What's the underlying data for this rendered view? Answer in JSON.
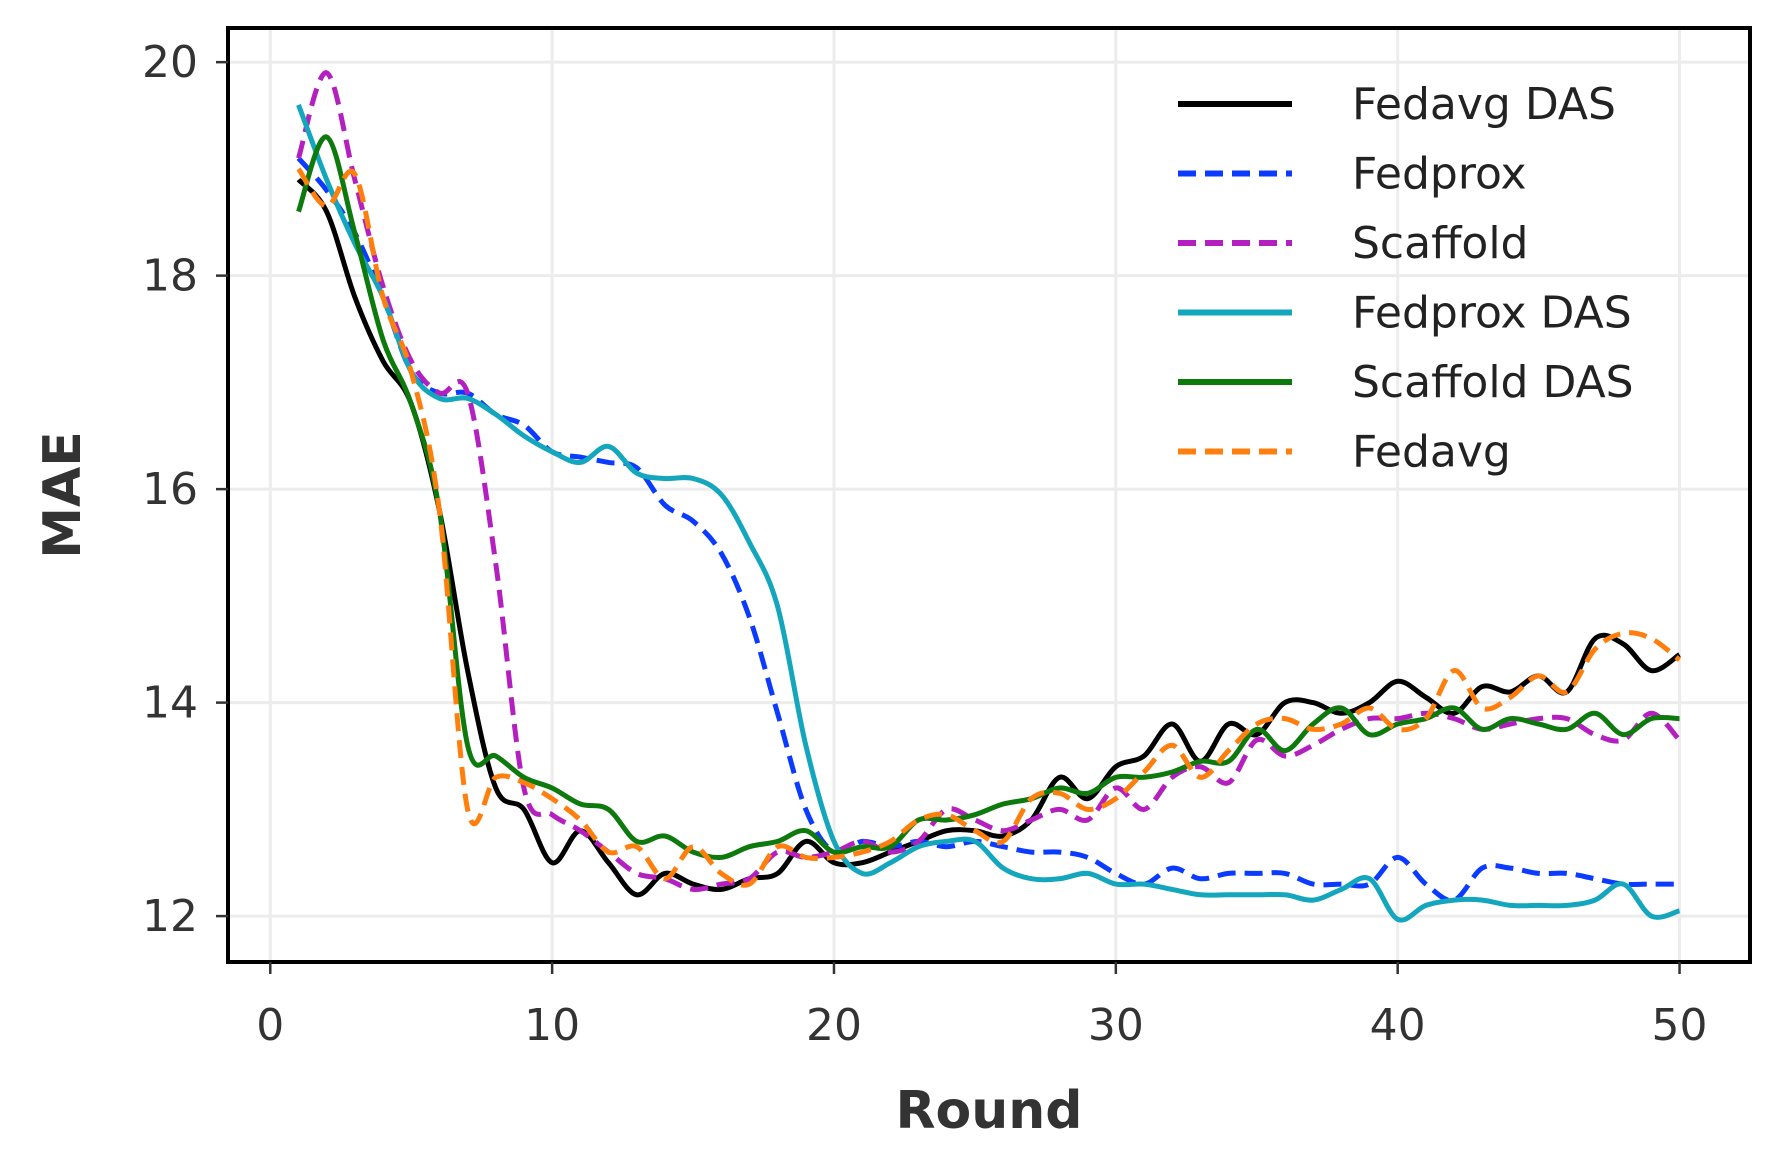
{
  "chart_data": {
    "type": "line",
    "xlabel": "Round",
    "ylabel": "MAE",
    "xlim": [
      -1.5,
      52.5
    ],
    "ylim": [
      11.57,
      20.32
    ],
    "xticks": [
      0,
      10,
      20,
      30,
      40,
      50
    ],
    "yticks": [
      12,
      14,
      16,
      18,
      20
    ],
    "grid": true,
    "legend_position": "top-right",
    "series": [
      {
        "name": "Fedavg DAS",
        "color": "#000000",
        "dash": "solid",
        "x": [
          1,
          2,
          3,
          4,
          5,
          6,
          7,
          8,
          9,
          10,
          11,
          12,
          13,
          14,
          15,
          16,
          17,
          18,
          19,
          20,
          21,
          22,
          23,
          24,
          25,
          26,
          27,
          28,
          29,
          30,
          31,
          32,
          33,
          34,
          35,
          36,
          37,
          38,
          39,
          40,
          41,
          42,
          43,
          44,
          45,
          46,
          47,
          48,
          49,
          50
        ],
        "y": [
          18.9,
          18.6,
          17.8,
          17.2,
          16.8,
          15.8,
          14.3,
          13.2,
          13.0,
          12.5,
          12.8,
          12.5,
          12.2,
          12.4,
          12.3,
          12.25,
          12.35,
          12.4,
          12.7,
          12.5,
          12.5,
          12.6,
          12.7,
          12.8,
          12.8,
          12.75,
          12.9,
          13.3,
          13.1,
          13.4,
          13.5,
          13.8,
          13.45,
          13.8,
          13.7,
          14.0,
          14.0,
          13.9,
          14.0,
          14.2,
          14.05,
          13.9,
          14.15,
          14.1,
          14.25,
          14.1,
          14.6,
          14.55,
          14.3,
          14.45
        ]
      },
      {
        "name": "Fedprox",
        "color": "#0b3bff",
        "dash": "dashed",
        "x": [
          1,
          2,
          3,
          4,
          5,
          6,
          7,
          8,
          9,
          10,
          11,
          12,
          13,
          14,
          15,
          16,
          17,
          18,
          19,
          20,
          21,
          22,
          23,
          24,
          25,
          26,
          27,
          28,
          29,
          30,
          31,
          32,
          33,
          34,
          35,
          36,
          37,
          38,
          39,
          40,
          41,
          42,
          43,
          44,
          45,
          46,
          47,
          48,
          49,
          50
        ],
        "y": [
          19.1,
          18.8,
          18.4,
          17.8,
          17.1,
          16.9,
          16.9,
          16.7,
          16.6,
          16.35,
          16.3,
          16.25,
          16.2,
          15.85,
          15.7,
          15.4,
          14.8,
          13.9,
          13.0,
          12.6,
          12.7,
          12.65,
          12.7,
          12.65,
          12.7,
          12.65,
          12.6,
          12.6,
          12.55,
          12.4,
          12.3,
          12.45,
          12.35,
          12.4,
          12.4,
          12.4,
          12.3,
          12.3,
          12.3,
          12.55,
          12.3,
          12.15,
          12.45,
          12.45,
          12.4,
          12.4,
          12.35,
          12.3,
          12.3,
          12.3
        ]
      },
      {
        "name": "Scaffold",
        "color": "#b41fbf",
        "dash": "dashed",
        "x": [
          1,
          2,
          3,
          4,
          5,
          6,
          7,
          8,
          9,
          10,
          11,
          12,
          13,
          14,
          15,
          16,
          17,
          18,
          19,
          20,
          21,
          22,
          23,
          24,
          25,
          26,
          27,
          28,
          29,
          30,
          31,
          32,
          33,
          34,
          35,
          36,
          37,
          38,
          39,
          40,
          41,
          42,
          43,
          44,
          45,
          46,
          47,
          48,
          49,
          50
        ],
        "y": [
          19.1,
          19.9,
          18.9,
          17.9,
          17.2,
          16.9,
          16.9,
          15.3,
          13.2,
          12.95,
          12.8,
          12.6,
          12.4,
          12.35,
          12.25,
          12.3,
          12.35,
          12.6,
          12.55,
          12.6,
          12.7,
          12.6,
          12.7,
          13.0,
          12.9,
          12.8,
          12.9,
          13.0,
          12.9,
          13.2,
          13.0,
          13.3,
          13.4,
          13.25,
          13.65,
          13.5,
          13.6,
          13.75,
          13.85,
          13.85,
          13.9,
          13.85,
          13.75,
          13.8,
          13.85,
          13.85,
          13.7,
          13.65,
          13.9,
          13.65
        ]
      },
      {
        "name": "Fedprox DAS",
        "color": "#13a6bc",
        "dash": "solid",
        "x": [
          1,
          2,
          3,
          4,
          5,
          6,
          7,
          8,
          9,
          10,
          11,
          12,
          13,
          14,
          15,
          16,
          17,
          18,
          19,
          20,
          21,
          22,
          23,
          24,
          25,
          26,
          27,
          28,
          29,
          30,
          31,
          32,
          33,
          34,
          35,
          36,
          37,
          38,
          39,
          40,
          41,
          42,
          43,
          44,
          45,
          46,
          47,
          48,
          49,
          50
        ],
        "y": [
          19.6,
          18.9,
          18.3,
          17.8,
          17.1,
          16.85,
          16.85,
          16.7,
          16.5,
          16.35,
          16.25,
          16.4,
          16.15,
          16.1,
          16.1,
          15.95,
          15.5,
          14.9,
          13.6,
          12.7,
          12.4,
          12.5,
          12.65,
          12.7,
          12.7,
          12.45,
          12.35,
          12.35,
          12.4,
          12.3,
          12.3,
          12.25,
          12.2,
          12.2,
          12.2,
          12.2,
          12.15,
          12.25,
          12.35,
          11.97,
          12.1,
          12.15,
          12.15,
          12.1,
          12.1,
          12.1,
          12.15,
          12.3,
          12.0,
          12.05
        ]
      },
      {
        "name": "Scaffold DAS",
        "color": "#0e7a0e",
        "dash": "solid",
        "x": [
          1,
          2,
          3,
          4,
          5,
          6,
          7,
          8,
          9,
          10,
          11,
          12,
          13,
          14,
          15,
          16,
          17,
          18,
          19,
          20,
          21,
          22,
          23,
          24,
          25,
          26,
          27,
          28,
          29,
          30,
          31,
          32,
          33,
          34,
          35,
          36,
          37,
          38,
          39,
          40,
          41,
          42,
          43,
          44,
          45,
          46,
          47,
          48,
          49,
          50
        ],
        "y": [
          18.6,
          19.3,
          18.4,
          17.4,
          16.8,
          15.8,
          13.6,
          13.5,
          13.3,
          13.2,
          13.05,
          13.0,
          12.7,
          12.75,
          12.6,
          12.55,
          12.65,
          12.7,
          12.8,
          12.6,
          12.65,
          12.65,
          12.9,
          12.9,
          12.95,
          13.05,
          13.1,
          13.2,
          13.15,
          13.3,
          13.3,
          13.35,
          13.45,
          13.45,
          13.75,
          13.55,
          13.8,
          13.95,
          13.7,
          13.8,
          13.85,
          13.95,
          13.75,
          13.85,
          13.8,
          13.75,
          13.9,
          13.7,
          13.85,
          13.85
        ]
      },
      {
        "name": "Fedavg",
        "color": "#ff7f0e",
        "dash": "dashed",
        "x": [
          1,
          2,
          3,
          4,
          5,
          6,
          7,
          8,
          9,
          10,
          11,
          12,
          13,
          14,
          15,
          16,
          17,
          18,
          19,
          20,
          21,
          22,
          23,
          24,
          25,
          26,
          27,
          28,
          29,
          30,
          31,
          32,
          33,
          34,
          35,
          36,
          37,
          38,
          39,
          40,
          41,
          42,
          43,
          44,
          45,
          46,
          47,
          48,
          49,
          50
        ],
        "y": [
          19.0,
          18.65,
          18.95,
          17.8,
          17.1,
          15.8,
          13.0,
          13.3,
          13.25,
          13.1,
          12.9,
          12.6,
          12.65,
          12.35,
          12.65,
          12.4,
          12.3,
          12.65,
          12.55,
          12.55,
          12.6,
          12.7,
          12.9,
          12.95,
          12.8,
          12.7,
          13.1,
          13.15,
          13.0,
          13.1,
          13.35,
          13.6,
          13.3,
          13.55,
          13.8,
          13.85,
          13.75,
          13.8,
          13.95,
          13.75,
          13.85,
          14.3,
          13.95,
          14.05,
          14.25,
          14.1,
          14.5,
          14.65,
          14.6,
          14.4
        ]
      }
    ]
  }
}
